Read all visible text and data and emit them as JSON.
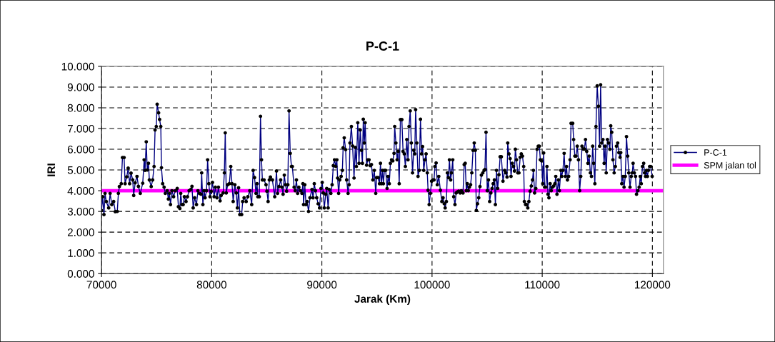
{
  "chart_data": {
    "type": "line",
    "title": "P-C-1",
    "xlabel": "Jarak (Km)",
    "ylabel": "IRI",
    "xlim": [
      70000,
      121000
    ],
    "xticks": [
      70000,
      80000,
      90000,
      100000,
      110000,
      120000
    ],
    "ylim": [
      0,
      10
    ],
    "yticks": [
      {
        "value": 0,
        "label": "0.000"
      },
      {
        "value": 1,
        "label": "1.000"
      },
      {
        "value": 2,
        "label": "2.000"
      },
      {
        "value": 3,
        "label": "3.000"
      },
      {
        "value": 4,
        "label": "4.000"
      },
      {
        "value": 5,
        "label": "5.000"
      },
      {
        "value": 6,
        "label": "6.000"
      },
      {
        "value": 7,
        "label": "7.000"
      },
      {
        "value": 8,
        "label": "8.000"
      },
      {
        "value": 9,
        "label": "9.000"
      },
      {
        "value": 10,
        "label": "10.000"
      }
    ],
    "grid": true,
    "legend": "right",
    "marker": "circle",
    "line_style": "solid",
    "ref_lines": [
      {
        "axis": "y",
        "value": 4,
        "label": "SPM jalan tol",
        "color": "#ff00ff"
      }
    ],
    "series": [
      {
        "name": "P-C-1",
        "color": "#000080",
        "x": [
          70000,
          70110,
          70220,
          70320,
          70430,
          70650,
          70780,
          70930,
          71100,
          71250,
          71430,
          71530,
          71620,
          71790,
          71900,
          72050,
          72140,
          72290,
          72420,
          72550,
          72680,
          72830,
          72920,
          73050,
          73220,
          73350,
          73520,
          73740,
          73870,
          73950,
          74060,
          74150,
          74260,
          74340,
          74510,
          74640,
          74770,
          74860,
          74970,
          75050,
          75180,
          75270,
          75380,
          75440,
          75550,
          75680,
          75790,
          75960,
          76070,
          76160,
          76260,
          76390,
          76540,
          76700,
          76870,
          76980,
          77110,
          77190,
          77300,
          77410,
          77520,
          77670,
          77800,
          77950,
          78100,
          78210,
          78320,
          78450,
          78620,
          78750,
          78880,
          79030,
          79090,
          79200,
          79310,
          79400,
          79530,
          79630,
          79740,
          79850,
          79960,
          80070,
          80220,
          80330,
          80480,
          80610,
          80760,
          80860,
          81040,
          81150,
          81230,
          81320,
          81450,
          81600,
          81730,
          81840,
          81950,
          82100,
          82230,
          82330,
          82440,
          82550,
          82720,
          82810,
          82940,
          83130,
          83280,
          83460,
          83630,
          83760,
          83890,
          84020,
          84110,
          84190,
          84320,
          84430,
          84520,
          84600,
          84750,
          84930,
          85010,
          85120,
          85230,
          85330,
          85510,
          85720,
          85880,
          85980,
          86110,
          86260,
          86370,
          86480,
          86590,
          86700,
          86800,
          86910,
          87020,
          87130,
          87240,
          87320,
          87480,
          87580,
          87690,
          87800,
          87910,
          88060,
          88190,
          88280,
          88340,
          88450,
          88560,
          88660,
          88790,
          88920,
          89100,
          89200,
          89310,
          89420,
          89530,
          89660,
          89790,
          89920,
          90030,
          90130,
          90220,
          90350,
          90440,
          90570,
          90670,
          90820,
          90930,
          91040,
          91150,
          91260,
          91360,
          91430,
          91520,
          91620,
          91750,
          91860,
          91930,
          92030,
          92160,
          92250,
          92380,
          92470,
          92550,
          92680,
          92790,
          92920,
          93030,
          93130,
          93260,
          93370,
          93480,
          93590,
          93680,
          93760,
          93850,
          93930,
          94060,
          94170,
          94280,
          94390,
          94500,
          94630,
          94760,
          94890,
          94970,
          95100,
          95230,
          95320,
          95400,
          95510,
          95580,
          95680,
          95790,
          95920,
          96010,
          96120,
          96220,
          96330,
          96440,
          96550,
          96610,
          96720,
          96830,
          96920,
          97020,
          97130,
          97260,
          97370,
          97480,
          97580,
          97710,
          97820,
          97910,
          98020,
          98120,
          98230,
          98340,
          98430,
          98510,
          98620,
          98730,
          98840,
          98950,
          99050,
          99140,
          99250,
          99360,
          99460,
          99570,
          99640,
          99740,
          99850,
          99960,
          100070,
          100180,
          100260,
          100370,
          100480,
          100610,
          100760,
          100890,
          101000,
          101110,
          101190,
          101300,
          101390,
          101490,
          101580,
          101690,
          101770,
          101880,
          101970,
          102080,
          102190,
          102290,
          102420,
          102550,
          102660,
          102810,
          102920,
          103010,
          103110,
          103200,
          103290,
          103390,
          103500,
          103610,
          103720,
          103830,
          103930,
          104020,
          104130,
          104240,
          104350,
          104480,
          104610,
          104730,
          104800,
          104900,
          105010,
          105120,
          105230,
          105340,
          105450,
          105550,
          105660,
          105750,
          105850,
          105960,
          106070,
          106180,
          106290,
          106440,
          106590,
          106700,
          106810,
          106870,
          106980,
          107090,
          107170,
          107280,
          107390,
          107480,
          107560,
          107670,
          107780,
          107890,
          108000,
          108100,
          108210,
          108320,
          108380,
          108490,
          108600,
          108690,
          108790,
          108900,
          109010,
          109120,
          109200,
          109310,
          109420,
          109530,
          109640,
          109740,
          109830,
          109940,
          110050,
          110130,
          110220,
          110330,
          110430,
          110520,
          110610,
          110720,
          110820,
          110930,
          111040,
          111150,
          111230,
          111340,
          111470,
          111560,
          111690,
          111770,
          111880,
          111990,
          112100,
          112210,
          112290,
          112400,
          112530,
          112620,
          112770,
          112850,
          112960,
          113070,
          113180,
          113290,
          113400,
          113500,
          113610,
          113720,
          113830,
          113930,
          114040,
          114150,
          114260,
          114370,
          114470,
          114580,
          114670,
          114780,
          114880,
          114990,
          115100,
          115210,
          115300,
          115400,
          115510,
          115620,
          115710,
          115810,
          115920,
          116030,
          116140,
          116220,
          116310,
          116420,
          116530,
          116640,
          116740,
          116850,
          116960,
          117070,
          117130,
          117220,
          117330,
          117430,
          117540,
          117650,
          117760,
          117860,
          117970,
          118080,
          118170,
          118250,
          118360,
          118470,
          118560,
          118690,
          118800,
          118900,
          118990,
          119100,
          119210,
          119290,
          119380,
          119470,
          119550,
          119640,
          119750,
          119850,
          119980
        ],
        "values": [
          3.05,
          3.71,
          2.85,
          3.87,
          3.48,
          3.17,
          3.87,
          3.33,
          3.48,
          2.99,
          3.0,
          3.87,
          4.2,
          4.34,
          5.6,
          5.6,
          4.34,
          4.67,
          5.09,
          4.34,
          4.85,
          4.52,
          3.77,
          4.38,
          4.69,
          4.21,
          3.87,
          4.36,
          5.49,
          4.98,
          6.36,
          5.0,
          5.32,
          4.52,
          4.2,
          4.52,
          5.17,
          6.93,
          7.1,
          8.17,
          7.76,
          7.44,
          7.1,
          5.11,
          4.34,
          4.17,
          3.87,
          4.0,
          3.6,
          3.87,
          3.33,
          4.0,
          3.71,
          4.0,
          4.11,
          3.23,
          3.14,
          3.87,
          3.33,
          3.33,
          3.71,
          3.48,
          3.71,
          4.0,
          4.06,
          4.21,
          3.17,
          3.66,
          3.33,
          4.0,
          3.87,
          3.83,
          4.86,
          3.33,
          4.0,
          3.66,
          4.0,
          5.49,
          4.34,
          3.71,
          3.97,
          4.4,
          3.71,
          4.17,
          3.66,
          4.17,
          3.51,
          3.77,
          3.89,
          4.86,
          6.79,
          3.89,
          4.29,
          4.34,
          5.17,
          4.34,
          3.48,
          4.29,
          3.89,
          3.17,
          4.14,
          2.85,
          2.85,
          3.48,
          3.66,
          3.48,
          3.71,
          4.0,
          3.33,
          4.98,
          4.63,
          3.87,
          4.34,
          3.71,
          3.71,
          7.59,
          5.49,
          4.52,
          4.52,
          4.29,
          3.98,
          3.48,
          4.52,
          4.66,
          4.52,
          3.71,
          4.95,
          3.87,
          4.2,
          4.52,
          4.17,
          3.83,
          4.75,
          4.29,
          3.98,
          4.29,
          7.85,
          5.8,
          5.17,
          5.17,
          4.17,
          4.0,
          4.52,
          3.87,
          4.17,
          4.0,
          3.87,
          4.34,
          3.33,
          4.29,
          3.33,
          3.48,
          3.0,
          3.66,
          4.06,
          3.66,
          4.34,
          4.0,
          3.66,
          3.37,
          3.17,
          4.11,
          4.4,
          3.89,
          3.17,
          3.83,
          4.11,
          3.17,
          4.06,
          3.87,
          4.29,
          5.21,
          5.49,
          5.17,
          5.49,
          4.61,
          3.87,
          4.52,
          4.69,
          4.98,
          6.07,
          6.55,
          5.98,
          4.52,
          3.87,
          4.29,
          6.3,
          7.1,
          6.16,
          4.61,
          6.09,
          5.17,
          7.28,
          5.32,
          6.93,
          5.95,
          5.32,
          7.45,
          6.3,
          7.28,
          5.23,
          5.49,
          5.49,
          5.21,
          5.26,
          4.52,
          4.98,
          3.87,
          4.63,
          4.63,
          4.34,
          5.32,
          4.34,
          4.98,
          4.34,
          4.98,
          4.98,
          4.11,
          4.69,
          4.34,
          5.32,
          5.49,
          5.44,
          5.8,
          7.1,
          6.3,
          5.49,
          5.9,
          4.34,
          7.43,
          7.43,
          5.9,
          5.78,
          5.17,
          6.47,
          5.49,
          7.1,
          7.85,
          6.3,
          4.86,
          5.95,
          5.78,
          7.91,
          6.3,
          4.69,
          4.98,
          7.45,
          5.78,
          6.13,
          4.98,
          5.49,
          5.78,
          4.86,
          4.02,
          3.33,
          3.87,
          4.46,
          4.52,
          4.52,
          5.17,
          5.34,
          4.29,
          4.69,
          4.02,
          3.48,
          3.66,
          3.37,
          3.17,
          3.48,
          4.86,
          4.63,
          5.49,
          4.52,
          4.86,
          5.49,
          3.71,
          3.33,
          3.89,
          3.94,
          3.98,
          3.89,
          4.0,
          3.89,
          5.26,
          5.32,
          4.0,
          4.34,
          4.0,
          4.17,
          4.29,
          4.86,
          5.95,
          6.3,
          5.95,
          3.05,
          3.37,
          3.66,
          4.2,
          4.75,
          4.86,
          4.98,
          5.02,
          6.82,
          4.0,
          4.52,
          3.48,
          3.89,
          4.11,
          4.34,
          4.52,
          3.33,
          4.98,
          4.11,
          4.77,
          5.64,
          5.64,
          4.46,
          4.98,
          4.86,
          4.66,
          6.3,
          5.78,
          5.55,
          4.69,
          5.32,
          5.17,
          4.95,
          6.0,
          5.49,
          4.86,
          4.86,
          5.61,
          5.78,
          5.67,
          5.17,
          3.48,
          3.33,
          3.33,
          3.17,
          3.48,
          3.98,
          4.23,
          4.52,
          4.98,
          3.89,
          4.11,
          6.0,
          6.15,
          6.15,
          5.49,
          5.44,
          4.34,
          5.82,
          4.17,
          4.17,
          5.17,
          3.83,
          3.66,
          4.34,
          4.0,
          4.17,
          4.23,
          4.34,
          4.69,
          3.83,
          4.52,
          4.0,
          4.98,
          4.69,
          4.98,
          5.8,
          4.69,
          5.17,
          4.52,
          4.69,
          5.49,
          7.25,
          7.25,
          6.47,
          5.67,
          5.67,
          6.15,
          5.49,
          4.0,
          4.69,
          6.15,
          6.01,
          6.01,
          6.47,
          5.9,
          5.32,
          5.67,
          4.86,
          4.69,
          6.15,
          5.32,
          4.34,
          7.1,
          9.06,
          8.08,
          6.15,
          9.11,
          6.3,
          6.47,
          5.32,
          6.15,
          4.86,
          6.47,
          6.3,
          6.0,
          7.13,
          6.82,
          5.49,
          4.86,
          5.17,
          6.15,
          6.3,
          5.84,
          5.61,
          5.84,
          4.34,
          4.69,
          4.17,
          4.69,
          6.61,
          5.67,
          4.86,
          4.17,
          4.69,
          4.86,
          5.32,
          4.86,
          4.69,
          3.83,
          4.0,
          4.17,
          4.69,
          4.34,
          5.17,
          5.32,
          4.86,
          4.69,
          4.98,
          4.69,
          4.98,
          5.17,
          5.17,
          4.69
        ]
      }
    ]
  }
}
